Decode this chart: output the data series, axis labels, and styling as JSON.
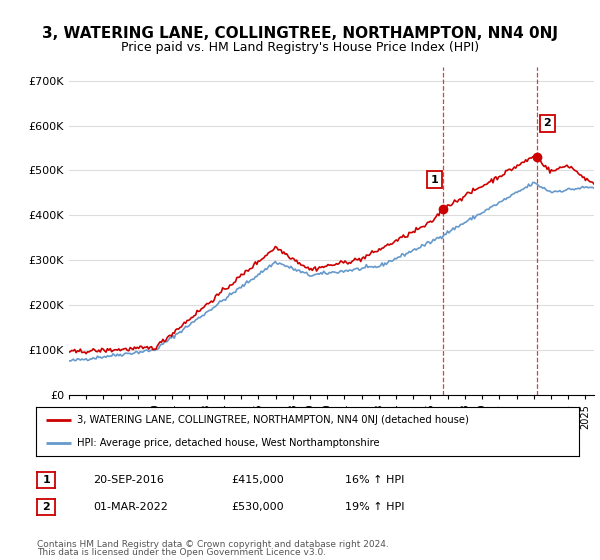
{
  "title": "3, WATERING LANE, COLLINGTREE, NORTHAMPTON, NN4 0NJ",
  "subtitle": "Price paid vs. HM Land Registry's House Price Index (HPI)",
  "title_fontsize": 11,
  "subtitle_fontsize": 9,
  "ylabel_ticks": [
    "£0",
    "£100K",
    "£200K",
    "£300K",
    "£400K",
    "£500K",
    "£600K",
    "£700K"
  ],
  "ytick_values": [
    0,
    100000,
    200000,
    300000,
    400000,
    500000,
    600000,
    700000
  ],
  "ylim": [
    0,
    730000
  ],
  "xlim_start": 1995.0,
  "xlim_end": 2025.5,
  "sale1_x": 2016.72,
  "sale1_y": 415000,
  "sale1_label": "1",
  "sale2_x": 2022.17,
  "sale2_y": 530000,
  "sale2_label": "2",
  "vline1_x": 2016.72,
  "vline2_x": 2022.17,
  "red_line_color": "#cc0000",
  "blue_line_color": "#6699cc",
  "vline_color": "#cc0000",
  "grid_color": "#dddddd",
  "background_color": "#ffffff",
  "legend_line1": "3, WATERING LANE, COLLINGTREE, NORTHAMPTON, NN4 0NJ (detached house)",
  "legend_line2": "HPI: Average price, detached house, West Northamptonshire",
  "annotation1_box": "1",
  "annotation1_date": "20-SEP-2016",
  "annotation1_price": "£415,000",
  "annotation1_hpi": "16% ↑ HPI",
  "annotation2_box": "2",
  "annotation2_date": "01-MAR-2022",
  "annotation2_price": "£530,000",
  "annotation2_hpi": "19% ↑ HPI",
  "footnote1": "Contains HM Land Registry data © Crown copyright and database right 2024.",
  "footnote2": "This data is licensed under the Open Government Licence v3.0."
}
